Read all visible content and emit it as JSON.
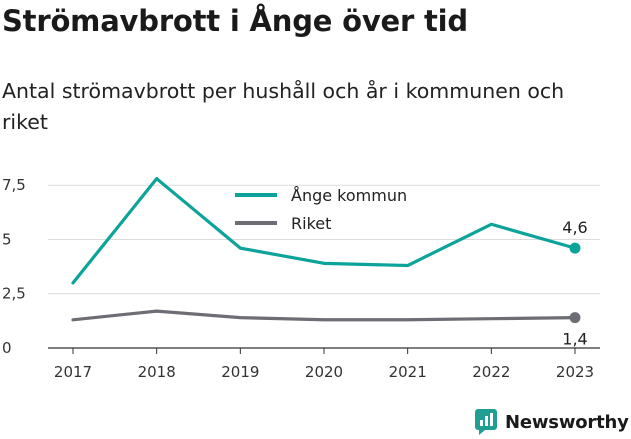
{
  "header": {
    "title": "Strömavbrott i Ånge över tid",
    "subtitle": "Antal strömavbrott per hushåll och år i kommunen och riket"
  },
  "branding": {
    "logo_text": "Newsworthy"
  },
  "colors": {
    "ange": "#0ca39a",
    "riket": "#6d6d75",
    "grid": "#dcdcdc",
    "axis": "#333333",
    "brand": "#1f9e94"
  },
  "chart_data": {
    "type": "line",
    "x": [
      "2017",
      "2018",
      "2019",
      "2020",
      "2021",
      "2022",
      "2023"
    ],
    "ylim": [
      0,
      8.2
    ],
    "yticks": [
      {
        "value": 0,
        "label": "0"
      },
      {
        "value": 2.5,
        "label": "2,5"
      },
      {
        "value": 5,
        "label": "5"
      },
      {
        "value": 7.5,
        "label": "7,5"
      }
    ],
    "series": [
      {
        "name": "Ånge kommun",
        "color": "#0ca39a",
        "values": [
          3.0,
          7.8,
          4.6,
          3.9,
          3.8,
          5.7,
          4.6
        ],
        "end_label": "4,6"
      },
      {
        "name": "Riket",
        "color": "#6d6d75",
        "values": [
          1.3,
          1.7,
          1.4,
          1.3,
          1.3,
          1.35,
          1.4
        ],
        "end_label": "1,4"
      }
    ],
    "legend": "top-center",
    "grid": true
  }
}
